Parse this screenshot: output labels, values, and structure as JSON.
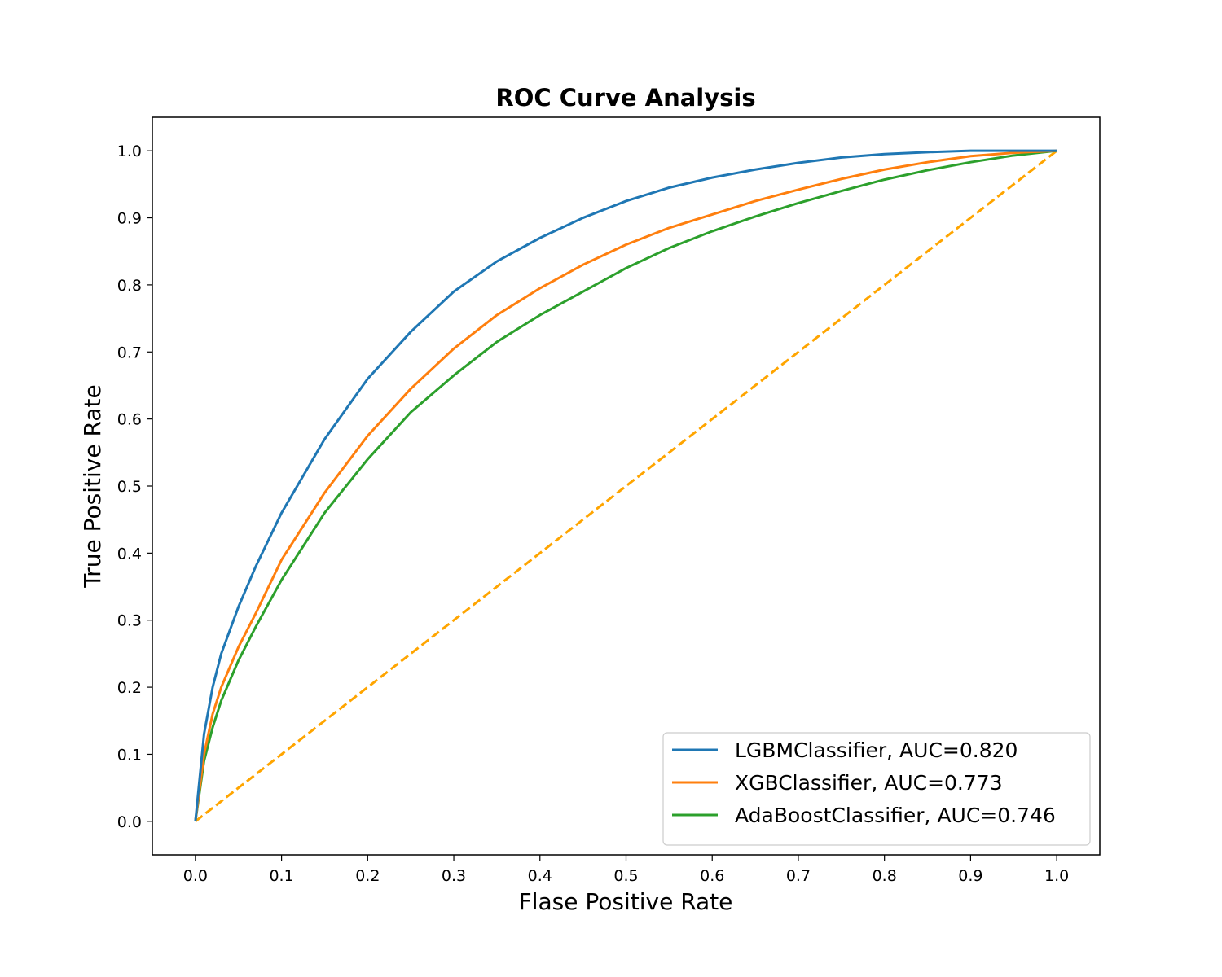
{
  "chart_data": {
    "type": "line",
    "title": "ROC Curve Analysis",
    "xlabel": "Flase Positive Rate",
    "ylabel": "True Positive Rate",
    "xlim": [
      -0.05,
      1.05
    ],
    "ylim": [
      -0.05,
      1.05
    ],
    "grid": false,
    "legend_position": "lower right",
    "xticks": [
      "0.0",
      "0.1",
      "0.2",
      "0.3",
      "0.4",
      "0.5",
      "0.6",
      "0.7",
      "0.8",
      "0.9",
      "1.0"
    ],
    "yticks": [
      "0.0",
      "0.1",
      "0.2",
      "0.3",
      "0.4",
      "0.5",
      "0.6",
      "0.7",
      "0.8",
      "0.9",
      "1.0"
    ],
    "series": [
      {
        "name": "LGBMClassifier, AUC=0.820",
        "color": "#1f77b4",
        "style": "solid",
        "x": [
          0,
          0.01,
          0.02,
          0.03,
          0.05,
          0.07,
          0.1,
          0.15,
          0.2,
          0.25,
          0.3,
          0.35,
          0.4,
          0.45,
          0.5,
          0.55,
          0.6,
          0.65,
          0.7,
          0.75,
          0.8,
          0.85,
          0.9,
          0.95,
          1.0
        ],
        "y": [
          0,
          0.13,
          0.2,
          0.25,
          0.32,
          0.38,
          0.46,
          0.57,
          0.66,
          0.73,
          0.79,
          0.835,
          0.87,
          0.9,
          0.925,
          0.945,
          0.96,
          0.972,
          0.982,
          0.99,
          0.995,
          0.998,
          1.0,
          1.0,
          1.0
        ]
      },
      {
        "name": "XGBClassifier, AUC=0.773",
        "color": "#ff7f0e",
        "style": "solid",
        "x": [
          0,
          0.01,
          0.02,
          0.03,
          0.05,
          0.07,
          0.1,
          0.15,
          0.2,
          0.25,
          0.3,
          0.35,
          0.4,
          0.45,
          0.5,
          0.55,
          0.6,
          0.65,
          0.7,
          0.75,
          0.8,
          0.85,
          0.9,
          0.95,
          1.0
        ],
        "y": [
          0,
          0.1,
          0.16,
          0.2,
          0.26,
          0.31,
          0.39,
          0.49,
          0.575,
          0.645,
          0.705,
          0.755,
          0.795,
          0.83,
          0.86,
          0.885,
          0.905,
          0.925,
          0.942,
          0.958,
          0.972,
          0.983,
          0.992,
          0.997,
          1.0
        ]
      },
      {
        "name": "AdaBoostClassifier, AUC=0.746",
        "color": "#2ca02c",
        "style": "solid",
        "x": [
          0,
          0.01,
          0.02,
          0.03,
          0.05,
          0.07,
          0.1,
          0.15,
          0.2,
          0.25,
          0.3,
          0.35,
          0.4,
          0.45,
          0.5,
          0.55,
          0.6,
          0.65,
          0.7,
          0.75,
          0.8,
          0.85,
          0.9,
          0.95,
          1.0
        ],
        "y": [
          0,
          0.09,
          0.14,
          0.18,
          0.24,
          0.29,
          0.36,
          0.46,
          0.54,
          0.61,
          0.665,
          0.715,
          0.755,
          0.79,
          0.825,
          0.855,
          0.88,
          0.902,
          0.922,
          0.94,
          0.957,
          0.971,
          0.983,
          0.993,
          1.0
        ]
      },
      {
        "color": "#ffa500",
        "style": "dashed",
        "x": [
          0,
          1
        ],
        "y": [
          0,
          1
        ]
      }
    ]
  }
}
